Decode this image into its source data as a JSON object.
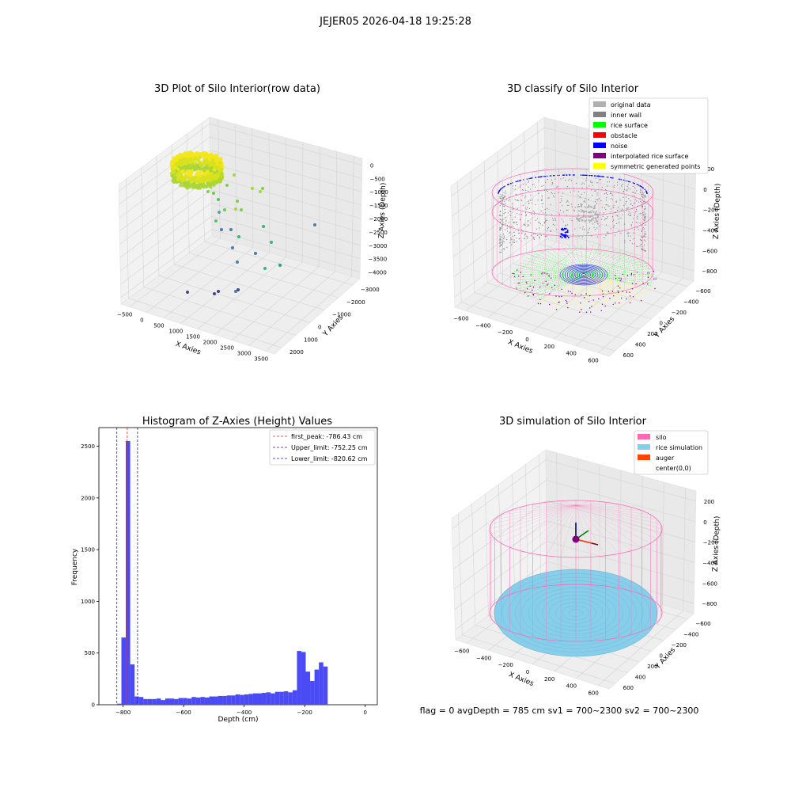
{
  "figure": {
    "suptitle": "JEJER05 2026-04-18 19:25:28",
    "footer": "flag = 0     avgDepth = 785 cm  sv1 = 700~2300  sv2 = 700~2300"
  },
  "colors": {
    "hist_bar": "#4b4bf5",
    "first_peak": "#d62728",
    "upper_limit": "#1f1fbf",
    "lower_limit": "#1f1fbf",
    "pane": "#f2f2f2",
    "silo_wire": "#ff69b4",
    "rice_sim": "#87ceeb",
    "auger": "#ff4500",
    "inner_wall": "#808080",
    "rice_surface": "#00ff00",
    "noise": "#0000ff",
    "obstacle": "#ff0000",
    "interpolated": "#800080",
    "symmetric": "#ffff00",
    "original": "#b0b0b0"
  },
  "chart_data": [
    {
      "id": "raw",
      "type": "scatter",
      "title": "3D Plot of Silo Interior(row data)",
      "xlabel": "X Axies",
      "ylabel": "Y Axies",
      "zlabel": "Z Axies (Depth)",
      "xticks": [
        "−500",
        "0",
        "500",
        "1000",
        "1500",
        "2000",
        "2500",
        "3000",
        "3500"
      ],
      "yticks": [
        "−3000",
        "−2000",
        "−1000",
        "0",
        "1000",
        "2000"
      ],
      "zticks": [
        "0",
        "−500",
        "−1000",
        "−1500",
        "−2000",
        "−2500",
        "−3000",
        "−3500",
        "−4000"
      ],
      "xlim": [
        -600,
        3700
      ],
      "ylim": [
        -3100,
        2300
      ],
      "zlim": [
        -4200,
        200
      ]
    },
    {
      "id": "classify",
      "type": "scatter",
      "title": "3D classify of Silo Interior",
      "xlabel": "X Axies",
      "ylabel": "Y Axies",
      "zlabel": "Z Axies (Depth)",
      "xticks": [
        "−600",
        "−400",
        "−200",
        "0",
        "200",
        "400",
        "600"
      ],
      "yticks": [
        "−600",
        "−400",
        "−200",
        "0",
        "200",
        "400",
        "600"
      ],
      "zticks": [
        "200",
        "0",
        "−200",
        "−400",
        "−600",
        "−800"
      ],
      "legend": [
        "original data",
        "inner wall",
        "rice surface",
        "obstacle",
        "noise",
        "interpolated rice surface",
        "symmetric generated points"
      ],
      "legend_colors": [
        "#b0b0b0",
        "#808080",
        "#00ff00",
        "#ff0000",
        "#0000ff",
        "#800080",
        "#ffff00"
      ]
    },
    {
      "id": "hist",
      "type": "bar",
      "title": "Histogram of Z-Axies (Height) Values",
      "xlabel": "Depth (cm)",
      "ylabel": "Frequency",
      "xlim": [
        -880,
        40
      ],
      "ylim": [
        0,
        2680
      ],
      "xticks": [
        -800,
        -600,
        -400,
        -200,
        0
      ],
      "xtick_labels": [
        "−800",
        "−600",
        "−400",
        "−200",
        "0"
      ],
      "yticks": [
        0,
        500,
        1000,
        1500,
        2000,
        2500
      ],
      "bin_start": -820,
      "bin_width": 14.5,
      "values": [
        10,
        650,
        2550,
        390,
        80,
        75,
        55,
        55,
        55,
        60,
        45,
        60,
        60,
        55,
        65,
        65,
        60,
        75,
        70,
        75,
        70,
        80,
        80,
        85,
        85,
        90,
        90,
        100,
        95,
        100,
        105,
        110,
        110,
        115,
        120,
        110,
        125,
        125,
        130,
        120,
        140,
        520,
        510,
        320,
        230,
        340,
        410,
        370
      ],
      "vlines": [
        {
          "name": "first_peak: -786.43 cm",
          "x": -786.43,
          "color": "#d62728"
        },
        {
          "name": "Upper_limit: -752.25 cm",
          "x": -752.25,
          "color": "#1f1fbf"
        },
        {
          "name": "Lower_limit: -820.62 cm",
          "x": -820.62,
          "color": "#1f1fbf"
        }
      ],
      "legend_position": "top-right"
    },
    {
      "id": "sim",
      "type": "scatter",
      "title": "3D simulation of Silo Interior",
      "xlabel": "X Axies",
      "ylabel": "Y Axies",
      "zlabel": "Z Axies (Depth)",
      "xticks": [
        "−600",
        "−400",
        "−200",
        "0",
        "200",
        "400",
        "600"
      ],
      "yticks": [
        "−600",
        "−400",
        "−200",
        "0",
        "200",
        "400",
        "600"
      ],
      "zticks": [
        "200",
        "0",
        "−200",
        "−400",
        "−600",
        "−800"
      ],
      "legend": [
        "silo",
        "rice simulation",
        "auger",
        "center(0,0)"
      ],
      "legend_colors": [
        "#ff69b4",
        "#87ceeb",
        "#ff4500",
        "#ffffff"
      ]
    }
  ]
}
